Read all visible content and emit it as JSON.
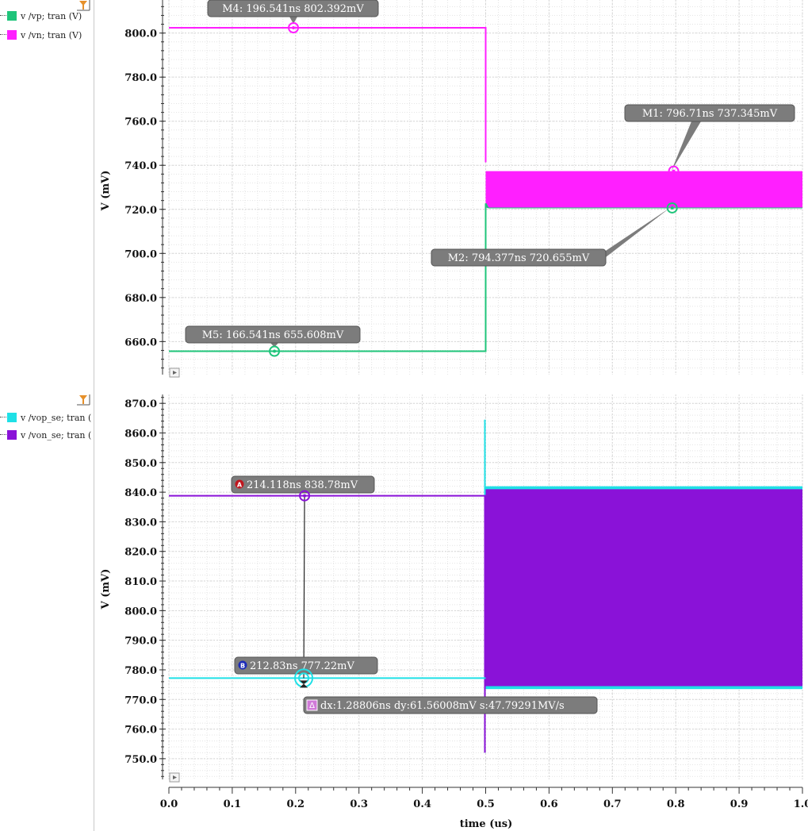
{
  "colors": {
    "vp": "#1fc47a",
    "vn": "#ff1fff",
    "vop_se": "#1fe0e6",
    "von_se": "#8a12d8",
    "marker_bg": "#7c7c7c",
    "grid": "#d6d6d6",
    "filter": "#e6902a"
  },
  "legend": {
    "top": [
      {
        "label": "v /vp; tran (V)",
        "color": "#1fc47a"
      },
      {
        "label": "v /vn; tran (V)",
        "color": "#ff1fff"
      }
    ],
    "bottom": [
      {
        "label": "v /vop_se; tran (",
        "color": "#1fe0e6"
      },
      {
        "label": "v /von_se; tran (",
        "color": "#8a12d8"
      }
    ]
  },
  "icons": {
    "filter": "filter-funnel-icon",
    "play": "play-triangle-icon",
    "marker_a": "marker-a-badge-icon",
    "marker_b": "marker-b-badge-icon",
    "delta": "delta-badge-icon"
  },
  "chart_data": [
    {
      "type": "line",
      "title": "",
      "xlabel": "",
      "ylabel": "V (mV)",
      "xlim": [
        0.0,
        1.0
      ],
      "ylim": [
        645.0,
        815.0
      ],
      "y_ticks": [
        660.0,
        680.0,
        700.0,
        720.0,
        740.0,
        760.0,
        780.0,
        800.0
      ],
      "y_tick_labels": [
        "660.0",
        "680.0",
        "700.0",
        "720.0",
        "740.0",
        "760.0",
        "780.0",
        "800.0"
      ],
      "series": [
        {
          "name": "v /vp; tran (V)",
          "color": "#1fc47a",
          "before_step": {
            "x": [
              0.0,
              0.5
            ],
            "y": [
              655.608,
              655.608
            ]
          },
          "step_at": 0.5,
          "settled_band": [
            720.655,
            737.345
          ]
        },
        {
          "name": "v /vn; tran (V)",
          "color": "#ff1fff",
          "before_step": {
            "x": [
              0.0,
              0.5
            ],
            "y": [
              802.392,
              802.392
            ]
          },
          "step_at": 0.5,
          "settled_band": [
            720.655,
            737.345
          ]
        }
      ],
      "markers": [
        {
          "label": "M4: 196.541ns 802.392mV",
          "x": 0.196541,
          "y": 802.392,
          "color": "#ff1fff"
        },
        {
          "label": "M5: 166.541ns 655.608mV",
          "x": 0.166541,
          "y": 655.608,
          "color": "#1fc47a"
        },
        {
          "label": "M1: 796.71ns 737.345mV",
          "x": 0.79671,
          "y": 737.345,
          "color": "#ff1fff"
        },
        {
          "label": "M2: 794.377ns 720.655mV",
          "x": 0.794377,
          "y": 720.655,
          "color": "#1fc47a"
        }
      ]
    },
    {
      "type": "line",
      "title": "",
      "xlabel": "time (us)",
      "ylabel": "V (mV)",
      "xlim": [
        0.0,
        1.0
      ],
      "ylim": [
        743.0,
        873.0
      ],
      "x_ticks": [
        0.0,
        0.1,
        0.2,
        0.3,
        0.4,
        0.5,
        0.6,
        0.7,
        0.8,
        0.9,
        1.0
      ],
      "x_tick_labels": [
        "0.0",
        "0.1",
        "0.2",
        "0.3",
        "0.4",
        "0.5",
        "0.6",
        "0.7",
        "0.8",
        "0.9",
        "1.0"
      ],
      "y_ticks": [
        750.0,
        760.0,
        770.0,
        780.0,
        790.0,
        800.0,
        810.0,
        820.0,
        830.0,
        840.0,
        850.0,
        860.0,
        870.0
      ],
      "y_tick_labels": [
        "750.0",
        "760.0",
        "770.0",
        "780.0",
        "790.0",
        "800.0",
        "810.0",
        "820.0",
        "830.0",
        "840.0",
        "850.0",
        "860.0",
        "870.0"
      ],
      "series": [
        {
          "name": "v /vop_se; tran (",
          "color": "#1fe0e6",
          "before_step": {
            "x": [
              0.0,
              0.5
            ],
            "y": [
              777.22,
              777.22
            ]
          },
          "step_at": 0.5,
          "spike": [
            752.0,
            864.5
          ],
          "settled_band": [
            773.5,
            842.0
          ]
        },
        {
          "name": "v /von_se; tran (",
          "color": "#8a12d8",
          "before_step": {
            "x": [
              0.0,
              0.5
            ],
            "y": [
              838.78,
              838.78
            ]
          },
          "step_at": 0.5,
          "settled_band": [
            774.5,
            841.0
          ]
        }
      ],
      "markers": [
        {
          "label": "214.118ns 838.78mV",
          "badge": "A",
          "x": 0.214118,
          "y": 838.78,
          "color": "#8a12d8"
        },
        {
          "label": "212.83ns 777.22mV",
          "badge": "B",
          "x": 0.21283,
          "y": 777.22,
          "color": "#1fe0e6"
        }
      ],
      "delta": {
        "label": "dx:1.28806ns dy:61.56008mV s:47.79291MV/s",
        "badge": "Δ"
      }
    }
  ]
}
